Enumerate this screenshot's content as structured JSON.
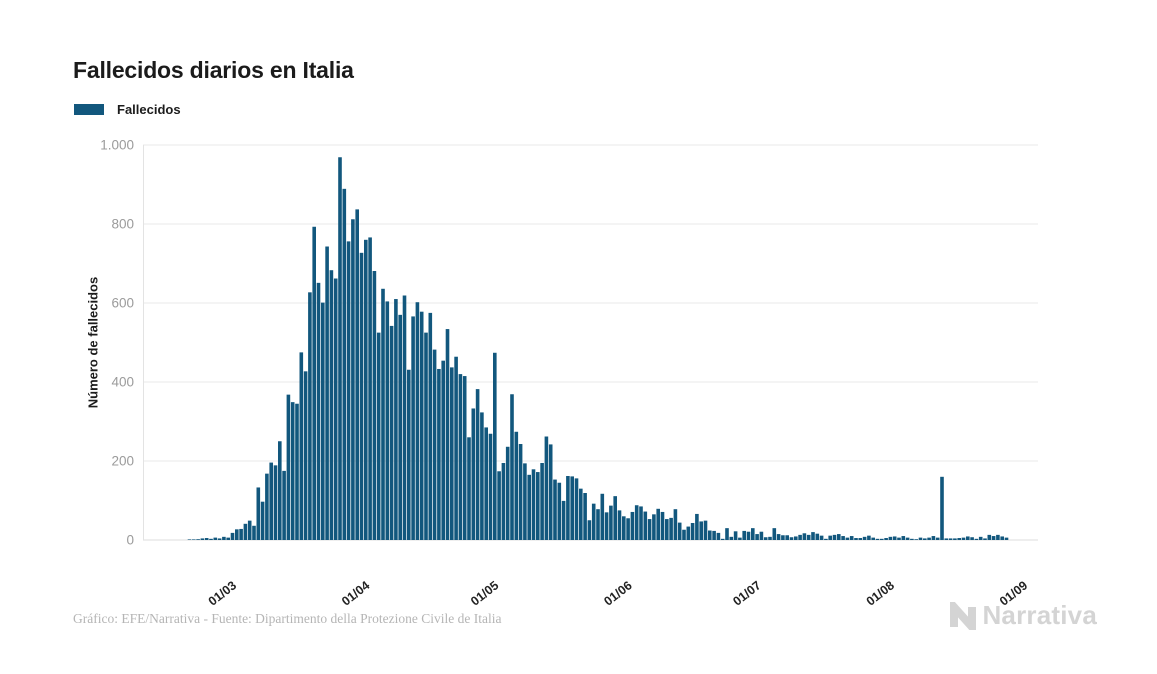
{
  "header": {
    "title": "Fallecidos diarios en Italia"
  },
  "legend": {
    "items": [
      {
        "label": "Fallecidos",
        "color": "#12577d"
      }
    ]
  },
  "footer": {
    "credit": "Gráfico: EFE/Narrativa - Fuente: Dipartimento della Protezione Civile de Italia"
  },
  "branding": {
    "logo_text": "Narrativa",
    "logo_color": "#d4d4d4"
  },
  "chart_data": {
    "type": "bar",
    "title": "Fallecidos diarios en Italia",
    "series_name": "Fallecidos",
    "xlabel": "",
    "ylabel": "Número de fallecidos",
    "bar_color": "#12577d",
    "grid": "horizontal",
    "legend_position": "top-left",
    "ylim": [
      0,
      1000
    ],
    "y_ticks": [
      0,
      200,
      400,
      600,
      800,
      1000
    ],
    "y_tick_labels": [
      "0",
      "200",
      "400",
      "600",
      "800",
      "1.000"
    ],
    "x_tick_labels": [
      "01/03",
      "01/04",
      "01/05",
      "01/06",
      "01/07",
      "01/08",
      "01/09"
    ],
    "x_tick_day_index": [
      9,
      40,
      70,
      101,
      131,
      162,
      193
    ],
    "x_unit": "day",
    "start_date": "2020-02-21",
    "end_date": "2020-08-29",
    "peak_value": 969,
    "values": [
      1,
      1,
      2,
      4,
      5,
      3,
      6,
      4,
      8,
      6,
      18,
      27,
      28,
      41,
      49,
      36,
      133,
      97,
      168,
      196,
      189,
      250,
      175,
      368,
      349,
      345,
      475,
      427,
      627,
      793,
      651,
      601,
      743,
      683,
      662,
      969,
      889,
      756,
      812,
      837,
      727,
      760,
      766,
      681,
      525,
      636,
      604,
      542,
      610,
      570,
      619,
      431,
      566,
      602,
      578,
      525,
      575,
      482,
      433,
      454,
      534,
      437,
      464,
      420,
      415,
      260,
      333,
      382,
      323,
      285,
      269,
      474,
      174,
      195,
      236,
      369,
      274,
      243,
      194,
      165,
      179,
      172,
      195,
      262,
      242,
      153,
      145,
      99,
      162,
      161,
      156,
      130,
      119,
      50,
      92,
      78,
      117,
      70,
      87,
      111,
      75,
      60,
      55,
      71,
      88,
      85,
      72,
      53,
      65,
      79,
      71,
      53,
      56,
      78,
      44,
      26,
      34,
      43,
      66,
      47,
      49,
      24,
      23,
      18,
      3,
      30,
      8,
      22,
      6,
      23,
      21,
      30,
      15,
      21,
      7,
      8,
      30,
      15,
      12,
      12,
      7,
      9,
      13,
      17,
      13,
      20,
      16,
      11,
      3,
      11,
      13,
      15,
      10,
      6,
      10,
      5,
      5,
      8,
      11,
      6,
      3,
      3,
      5,
      8,
      9,
      6,
      10,
      6,
      3,
      2,
      6,
      4,
      6,
      10,
      6,
      160,
      4,
      4,
      4,
      5,
      6,
      9,
      7,
      3,
      8,
      4,
      13,
      10,
      13,
      9,
      6
    ]
  }
}
